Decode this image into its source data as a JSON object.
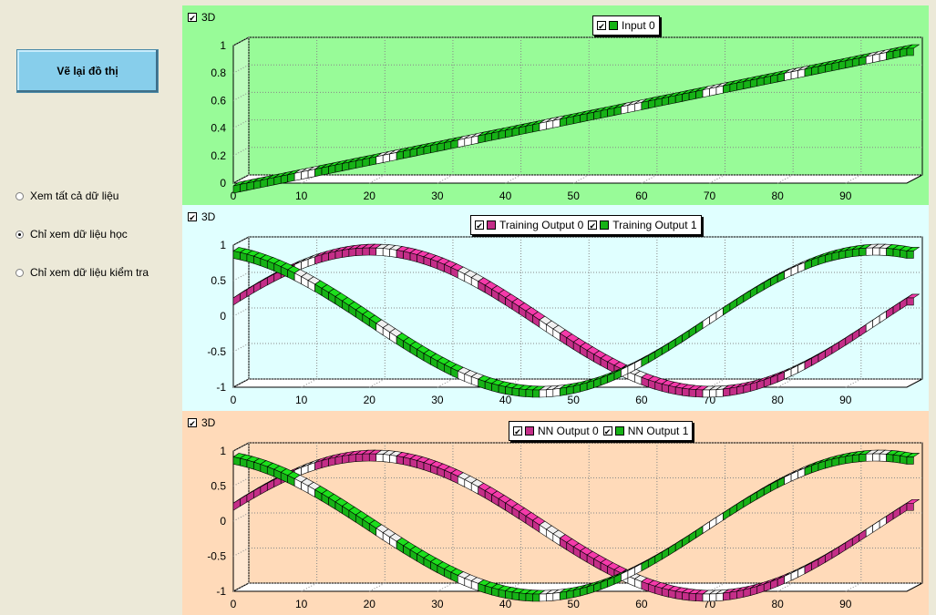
{
  "sidebar": {
    "redraw_button": "Vẽ lại đồ thị",
    "radio_options": [
      {
        "label": "Xem tất cả dữ liệu",
        "selected": false
      },
      {
        "label": "Chỉ xem dữ liệu học",
        "selected": true
      },
      {
        "label": "Chỉ xem dữ liệu kiểm tra",
        "selected": false
      }
    ]
  },
  "colors": {
    "panel_bg": [
      "#98fb98",
      "#e0ffff",
      "#ffdab9"
    ],
    "green_series": "#16b216",
    "magenta_series": "#c42e88"
  },
  "charts": [
    {
      "checkbox_3d_label": "3D",
      "checkbox_3d_checked": true,
      "legend": [
        {
          "label": "Input 0",
          "color": "#16b216",
          "checked": true
        }
      ]
    },
    {
      "checkbox_3d_label": "3D",
      "checkbox_3d_checked": true,
      "legend": [
        {
          "label": "Training Output 0",
          "color": "#c42e88",
          "checked": true
        },
        {
          "label": "Training Output 1",
          "color": "#16b216",
          "checked": true
        }
      ]
    },
    {
      "checkbox_3d_label": "3D",
      "checkbox_3d_checked": true,
      "legend": [
        {
          "label": "NN Output 0",
          "color": "#c42e88",
          "checked": true
        },
        {
          "label": "NN Output 1",
          "color": "#16b216",
          "checked": true
        }
      ]
    }
  ],
  "chart_data": [
    {
      "type": "bar",
      "view": "3d",
      "grid": true,
      "legend_position": "top-center",
      "x_ticks": [
        0,
        10,
        20,
        30,
        40,
        50,
        60,
        70,
        80,
        90
      ],
      "y_ticks": [
        "0",
        "0.2",
        "0.4",
        "0.6",
        "0.8",
        "1"
      ],
      "ylim": [
        0,
        1
      ],
      "xlim": [
        0,
        99
      ],
      "series": [
        {
          "name": "Input 0",
          "color": "#16b216",
          "formula": "i / 99",
          "n": 100
        }
      ]
    },
    {
      "type": "bar",
      "view": "3d",
      "grid": true,
      "legend_position": "top-center",
      "x_ticks": [
        0,
        10,
        20,
        30,
        40,
        50,
        60,
        70,
        80,
        90
      ],
      "y_ticks": [
        "-1",
        "-0.5",
        "0",
        "0.5",
        "1"
      ],
      "ylim": [
        -1,
        1
      ],
      "xlim": [
        0,
        99
      ],
      "series": [
        {
          "name": "Training Output 0",
          "color": "#c42e88",
          "formula": "sin(2*pi*i/99 + 0.3)",
          "n": 100
        },
        {
          "name": "Training Output 1",
          "color": "#16b216",
          "formula": "cos(2*pi*i/99 + 0.3)",
          "n": 100
        }
      ]
    },
    {
      "type": "bar",
      "view": "3d",
      "grid": true,
      "legend_position": "top-center",
      "x_ticks": [
        0,
        10,
        20,
        30,
        40,
        50,
        60,
        70,
        80,
        90
      ],
      "y_ticks": [
        "-1",
        "-0.5",
        "0",
        "0.5",
        "1"
      ],
      "ylim": [
        -1,
        1
      ],
      "xlim": [
        0,
        99
      ],
      "series": [
        {
          "name": "NN Output 0",
          "color": "#c42e88",
          "formula": "sin(2*pi*i/99 + 0.3)",
          "n": 100
        },
        {
          "name": "NN Output 1",
          "color": "#16b216",
          "formula": "cos(2*pi*i/99 + 0.3)",
          "n": 100
        }
      ]
    }
  ]
}
